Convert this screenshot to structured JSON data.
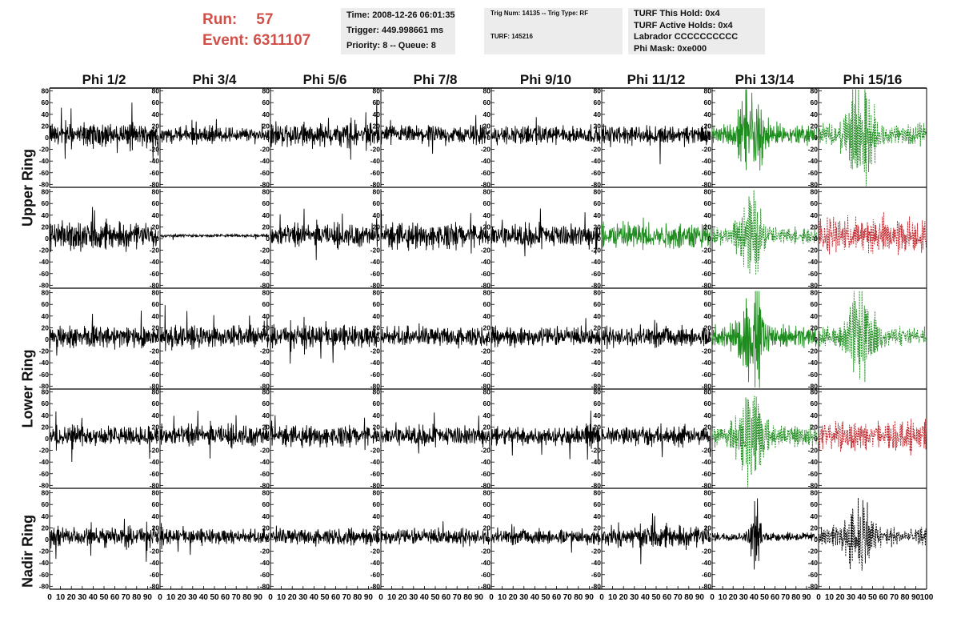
{
  "header": {
    "run_label": "Run:",
    "run_value": "57",
    "event_label": "Event:",
    "event_value": "6311107"
  },
  "info_time": {
    "time": "Time: 2008-12-26 06:01:35",
    "trigger": "Trigger: 449.998661 ms",
    "priority": "Priority: 8 -- Queue: 8"
  },
  "info_trig": {
    "trig": "Trig Num: 14135 -- Trig Type: RF",
    "turf": "TURF: 145216"
  },
  "info_turf": {
    "hold": "TURF This Hold: 0x4",
    "active": "TURF Active Holds: 0x4",
    "labrador": "Labrador CCCCCCCCCC",
    "phimask": "Phi Mask: 0xe000"
  },
  "ring_labels": [
    "Upper Ring",
    "Lower Ring",
    "Nadir Ring"
  ],
  "colors": {
    "black": "#000000",
    "green": "#1f8c1f",
    "red": "#c0272d",
    "header_red": "#d0504a",
    "info_bg": "#ececec"
  },
  "chart_data": {
    "type": "line",
    "columns": [
      "Phi 1/2",
      "Phi 3/4",
      "Phi 5/6",
      "Phi 7/8",
      "Phi 9/10",
      "Phi 11/12",
      "Phi 13/14",
      "Phi 15/16"
    ],
    "row_count": 5,
    "ylim": [
      -85,
      85
    ],
    "y_ticks": [
      -80,
      -60,
      -40,
      -20,
      0,
      20,
      40,
      60,
      80
    ],
    "xlim": [
      0,
      100
    ],
    "x_ticks": [
      0,
      10,
      20,
      30,
      40,
      50,
      60,
      70,
      80,
      90,
      100
    ],
    "x_tick_labels": [
      "0",
      "10",
      "20",
      "30",
      "40",
      "50",
      "60",
      "70",
      "80",
      "90",
      "100"
    ],
    "panels": [
      [
        {
          "color": "black",
          "dashed": false,
          "amp": 13,
          "burst": 0
        },
        {
          "color": "black",
          "dashed": false,
          "amp": 9,
          "burst": 0
        },
        {
          "color": "black",
          "dashed": false,
          "amp": 14,
          "burst": 0
        },
        {
          "color": "black",
          "dashed": false,
          "amp": 11,
          "burst": 0
        },
        {
          "color": "black",
          "dashed": false,
          "amp": 11,
          "burst": 0
        },
        {
          "color": "black",
          "dashed": false,
          "amp": 12,
          "burst": 0
        },
        {
          "color": "green",
          "dashed": false,
          "amp": 20,
          "burst": 1
        },
        {
          "color": "green",
          "dashed": true,
          "amp": 22,
          "burst": 1
        }
      ],
      [
        {
          "color": "black",
          "dashed": false,
          "amp": 16,
          "burst": 0
        },
        {
          "color": "black",
          "dashed": false,
          "amp": 2,
          "burst": 0
        },
        {
          "color": "black",
          "dashed": false,
          "amp": 14,
          "burst": 0
        },
        {
          "color": "black",
          "dashed": false,
          "amp": 15,
          "burst": 0
        },
        {
          "color": "black",
          "dashed": false,
          "amp": 14,
          "burst": 0
        },
        {
          "color": "green",
          "dashed": false,
          "amp": 17,
          "burst": 0
        },
        {
          "color": "green",
          "dashed": true,
          "amp": 17,
          "burst": 1
        },
        {
          "color": "red",
          "dashed": true,
          "amp": 22,
          "burst": 0
        }
      ],
      [
        {
          "color": "black",
          "dashed": false,
          "amp": 13,
          "burst": 0
        },
        {
          "color": "black",
          "dashed": false,
          "amp": 13,
          "burst": 0
        },
        {
          "color": "black",
          "dashed": false,
          "amp": 13,
          "burst": 0
        },
        {
          "color": "black",
          "dashed": false,
          "amp": 12,
          "burst": 0
        },
        {
          "color": "black",
          "dashed": false,
          "amp": 12,
          "burst": 0
        },
        {
          "color": "black",
          "dashed": false,
          "amp": 12,
          "burst": 0
        },
        {
          "color": "green",
          "dashed": false,
          "amp": 20,
          "burst": 1
        },
        {
          "color": "green",
          "dashed": true,
          "amp": 18,
          "burst": 1
        }
      ],
      [
        {
          "color": "black",
          "dashed": false,
          "amp": 12,
          "burst": 0
        },
        {
          "color": "black",
          "dashed": false,
          "amp": 13,
          "burst": 0
        },
        {
          "color": "black",
          "dashed": false,
          "amp": 12,
          "burst": 0
        },
        {
          "color": "black",
          "dashed": false,
          "amp": 12,
          "burst": 0
        },
        {
          "color": "black",
          "dashed": false,
          "amp": 12,
          "burst": 0
        },
        {
          "color": "black",
          "dashed": false,
          "amp": 12,
          "burst": 0
        },
        {
          "color": "green",
          "dashed": true,
          "amp": 20,
          "burst": 1
        },
        {
          "color": "red",
          "dashed": true,
          "amp": 18,
          "burst": 0
        }
      ],
      [
        {
          "color": "black",
          "dashed": false,
          "amp": 12,
          "burst": 0
        },
        {
          "color": "black",
          "dashed": false,
          "amp": 9,
          "burst": 0
        },
        {
          "color": "black",
          "dashed": false,
          "amp": 10,
          "burst": 0
        },
        {
          "color": "black",
          "dashed": false,
          "amp": 10,
          "burst": 0
        },
        {
          "color": "black",
          "dashed": false,
          "amp": 9,
          "burst": 0
        },
        {
          "color": "black",
          "dashed": false,
          "amp": 13,
          "burst": 0
        },
        {
          "color": "black",
          "dashed": false,
          "amp": 8,
          "burst": 2
        },
        {
          "color": "black",
          "dashed": true,
          "amp": 18,
          "burst": 1
        }
      ]
    ]
  }
}
